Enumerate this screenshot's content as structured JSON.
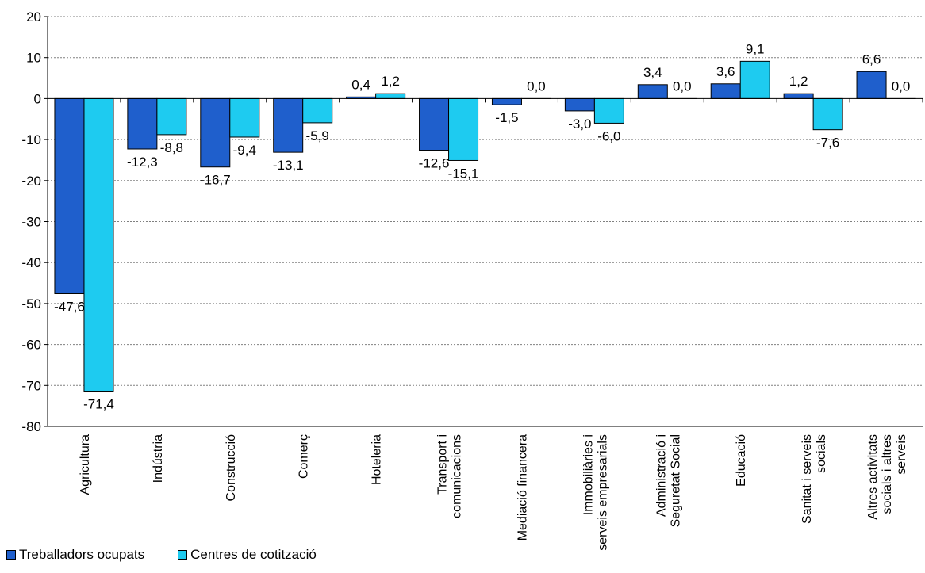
{
  "chart_data": {
    "type": "bar",
    "categories": [
      [
        "Agricultura"
      ],
      [
        "Indústria"
      ],
      [
        "Construcció"
      ],
      [
        "Comerç"
      ],
      [
        "Hoteleria"
      ],
      [
        "Transport i",
        "comunicacions"
      ],
      [
        "Mediació financera"
      ],
      [
        "Immobiliàries i",
        "serveis empresarials"
      ],
      [
        "Administració i",
        "Seguretat Social"
      ],
      [
        "Educació"
      ],
      [
        "Sanitat i serveis",
        "socials"
      ],
      [
        "Altres activitats",
        "socials i altres",
        "serveis"
      ]
    ],
    "series": [
      {
        "name": "Treballadors ocupats",
        "color": "#1f5fcc",
        "values": [
          -47.6,
          -12.3,
          -16.7,
          -13.1,
          0.4,
          -12.6,
          -1.5,
          -3.0,
          3.4,
          3.6,
          1.2,
          6.6
        ],
        "labels": [
          "-47,6",
          "-12,3",
          "-16,7",
          "-13,1",
          "0,4",
          "-12,6",
          "-1,5",
          "-3,0",
          "3,4",
          "3,6",
          "1,2",
          "6,6"
        ]
      },
      {
        "name": "Centres de cotització",
        "color": "#1ecbf0",
        "values": [
          -71.4,
          -8.8,
          -9.4,
          -5.9,
          1.2,
          -15.1,
          0.0,
          -6.0,
          0.0,
          9.1,
          -7.6,
          0.0
        ],
        "labels": [
          "-71,4",
          "-8,8",
          "-9,4",
          "-5,9",
          "1,2",
          "-15,1",
          "0,0",
          "-6,0",
          "0,0",
          "9,1",
          "-7,6",
          "0,0"
        ]
      }
    ],
    "yticks": [
      20,
      10,
      0,
      -10,
      -20,
      -30,
      -40,
      -50,
      -60,
      -70,
      -80
    ],
    "ylim": [
      -80,
      20
    ],
    "grid": true,
    "legend": "bottom-left"
  }
}
